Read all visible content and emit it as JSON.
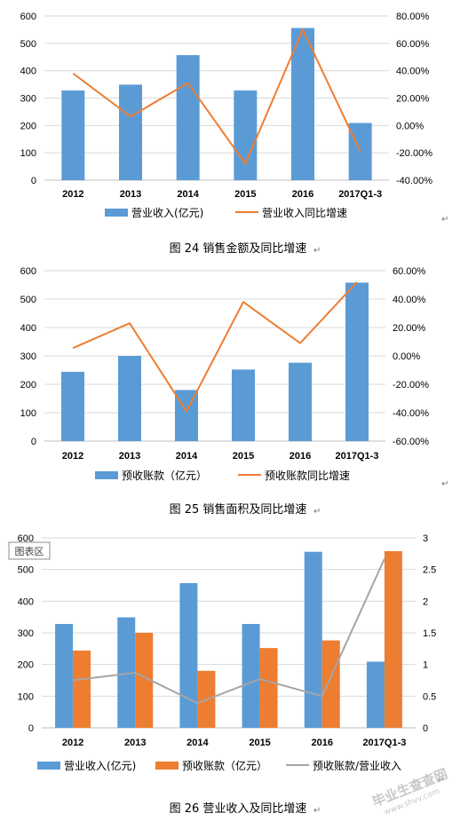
{
  "colors": {
    "blue": "#5b9bd5",
    "orange": "#ed7d31",
    "gray": "#a5a5a5",
    "grid": "#d9d9d9"
  },
  "return_mark": "↵",
  "chart_data": [
    {
      "type": "bar+line",
      "caption": "图 24  销售金额及同比增速",
      "categories": [
        "2012",
        "2013",
        "2014",
        "2015",
        "2016",
        "2017Q1-3"
      ],
      "y_left": {
        "ticks": [
          "0",
          "100",
          "200",
          "300",
          "400",
          "500",
          "600"
        ],
        "min": 0,
        "max": 600
      },
      "y_right": {
        "ticks": [
          "-40.00%",
          "-20.00%",
          "0.00%",
          "20.00%",
          "40.00%",
          "60.00%",
          "80.00%"
        ],
        "min": -40,
        "max": 80
      },
      "series": [
        {
          "name": "营业收入(亿元)",
          "type": "bar",
          "axis": "left",
          "values": [
            328,
            349,
            457,
            328,
            556,
            209
          ]
        },
        {
          "name": "营业收入同比增速",
          "type": "line",
          "axis": "right",
          "values": [
            38,
            6.5,
            31,
            -28,
            70,
            -19
          ]
        }
      ]
    },
    {
      "type": "bar+line",
      "caption": "图 25  销售面积及同比增速",
      "categories": [
        "2012",
        "2013",
        "2014",
        "2015",
        "2016",
        "2017Q1-3"
      ],
      "y_left": {
        "ticks": [
          "0",
          "100",
          "200",
          "300",
          "400",
          "500",
          "600"
        ],
        "min": 0,
        "max": 600
      },
      "y_right": {
        "ticks": [
          "-60.00%",
          "-40.00%",
          "-20.00%",
          "0.00%",
          "20.00%",
          "40.00%",
          "60.00%"
        ],
        "min": -60,
        "max": 60
      },
      "series": [
        {
          "name": "预收账款（亿元）",
          "type": "bar",
          "axis": "left",
          "values": [
            244,
            300,
            180,
            252,
            276,
            558
          ]
        },
        {
          "name": "预收账款同比增速",
          "type": "line",
          "axis": "right",
          "values": [
            5.5,
            23,
            -39,
            38,
            9,
            52
          ]
        }
      ]
    },
    {
      "type": "bar+line",
      "caption": "图 26  营业收入及同比增速",
      "plot_area_label": "图表区",
      "categories": [
        "2012",
        "2013",
        "2014",
        "2015",
        "2016",
        "2017Q1-3"
      ],
      "y_left": {
        "ticks": [
          "0",
          "100",
          "200",
          "300",
          "400",
          "500",
          "600"
        ],
        "min": 0,
        "max": 600
      },
      "y_right": {
        "ticks": [
          "0",
          "0.5",
          "1",
          "1.5",
          "2",
          "2.5",
          "3"
        ],
        "min": 0,
        "max": 3
      },
      "series": [
        {
          "name": "营业收入(亿元)",
          "type": "bar",
          "axis": "left",
          "values": [
            328,
            349,
            457,
            328,
            556,
            209
          ]
        },
        {
          "name": "预收账款（亿元）",
          "type": "bar",
          "axis": "left",
          "values": [
            244,
            300,
            180,
            252,
            276,
            558
          ]
        },
        {
          "name": "预收账款/营业收入",
          "type": "line",
          "axis": "right",
          "values": [
            0.75,
            0.87,
            0.39,
            0.77,
            0.5,
            2.67
          ]
        }
      ]
    }
  ],
  "watermark": {
    "main": "毕业生查查网",
    "sub": "www.shvv.com"
  }
}
